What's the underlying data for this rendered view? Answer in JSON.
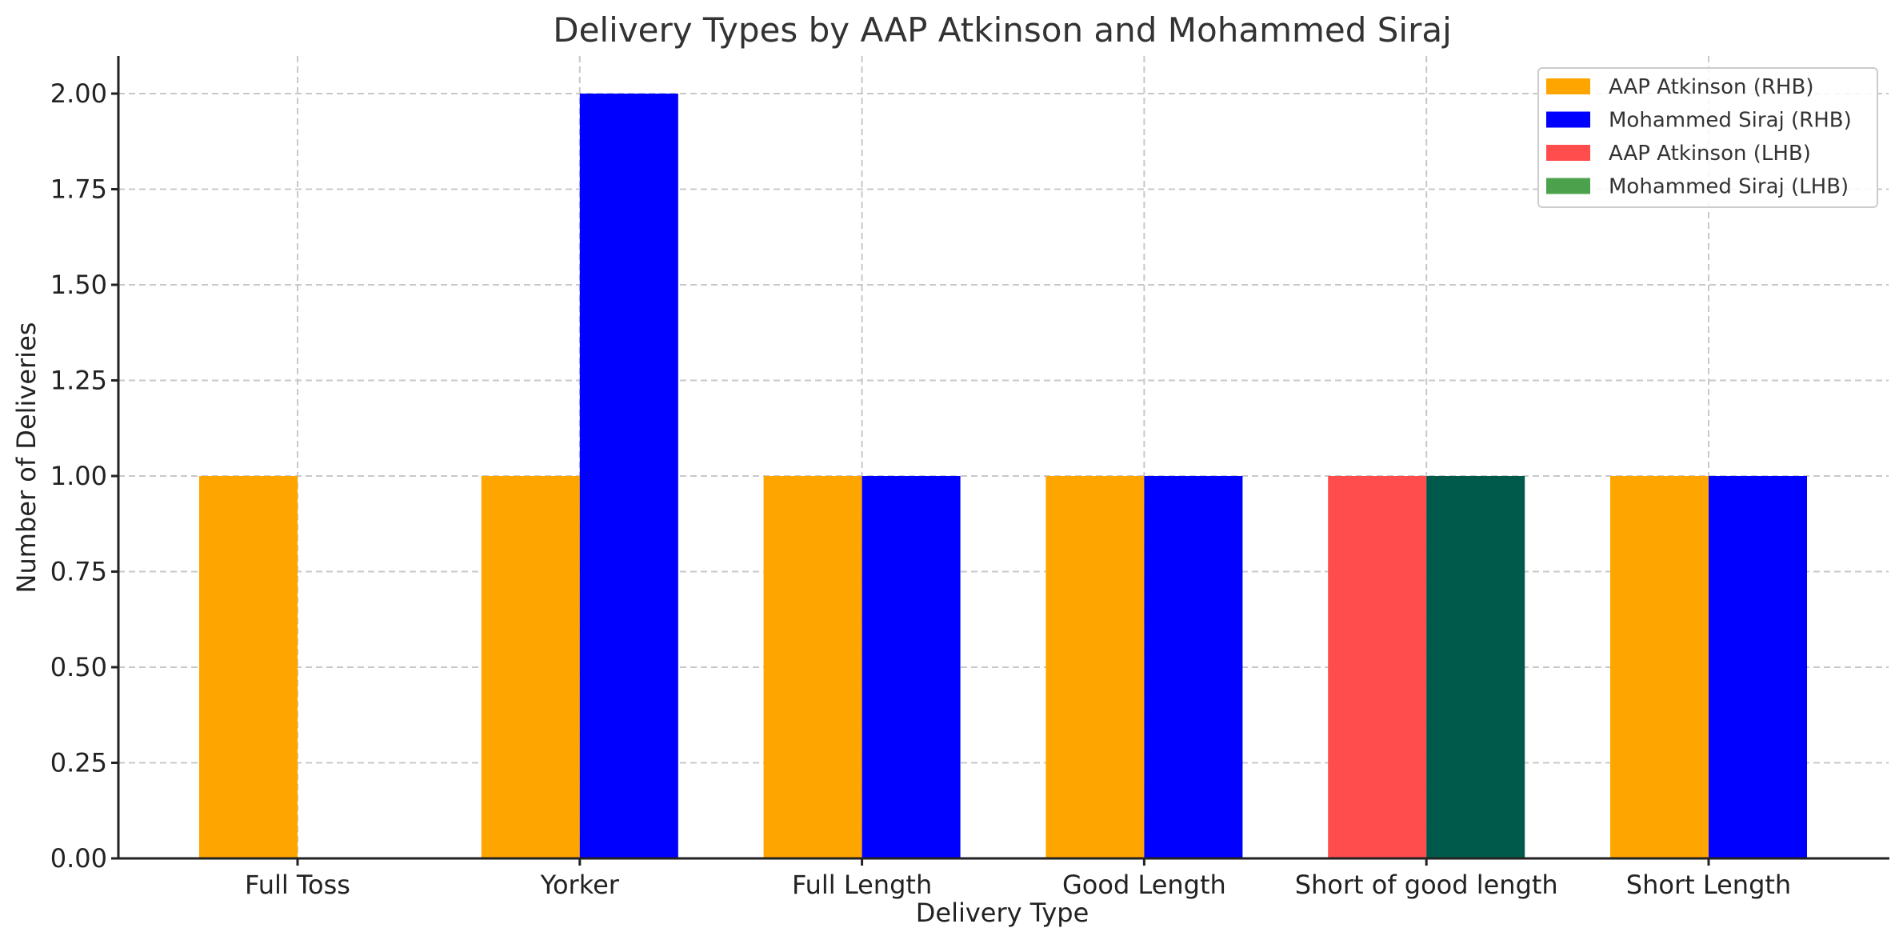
{
  "chart_data": {
    "type": "bar",
    "title": "Delivery Types by AAP Atkinson and Mohammed Siraj",
    "xlabel": "Delivery Type",
    "ylabel": "Number of Deliveries",
    "categories": [
      "Full Toss",
      "Yorker",
      "Full Length",
      "Good Length",
      "Short of good length",
      "Short Length"
    ],
    "ylim": [
      0,
      2.1
    ],
    "yticks": [
      "0.00",
      "0.25",
      "0.50",
      "0.75",
      "1.00",
      "1.25",
      "1.50",
      "1.75",
      "2.00"
    ],
    "ytick_values": [
      0,
      0.25,
      0.5,
      0.75,
      1.0,
      1.25,
      1.5,
      1.75,
      2.0
    ],
    "grid": true,
    "legend_position": "top-right",
    "series": [
      {
        "name": "AAP Atkinson (RHB)",
        "color": "#FFA500",
        "slot": "left",
        "values": [
          1,
          1,
          1,
          1,
          0,
          1
        ]
      },
      {
        "name": "Mohammed Siraj (RHB)",
        "color": "#0000FF",
        "slot": "right",
        "values": [
          0,
          2,
          1,
          1,
          0,
          1
        ]
      },
      {
        "name": "AAP Atkinson (LHB)",
        "color": "#FF4C4C",
        "slot": "left",
        "values": [
          0,
          0,
          0,
          0,
          1,
          0
        ]
      },
      {
        "name": "Mohammed Siraj (LHB)",
        "color": "#4CA24C",
        "bar_color": "#005A4B",
        "slot": "right",
        "values": [
          0,
          0,
          0,
          0,
          1,
          0
        ]
      }
    ]
  }
}
